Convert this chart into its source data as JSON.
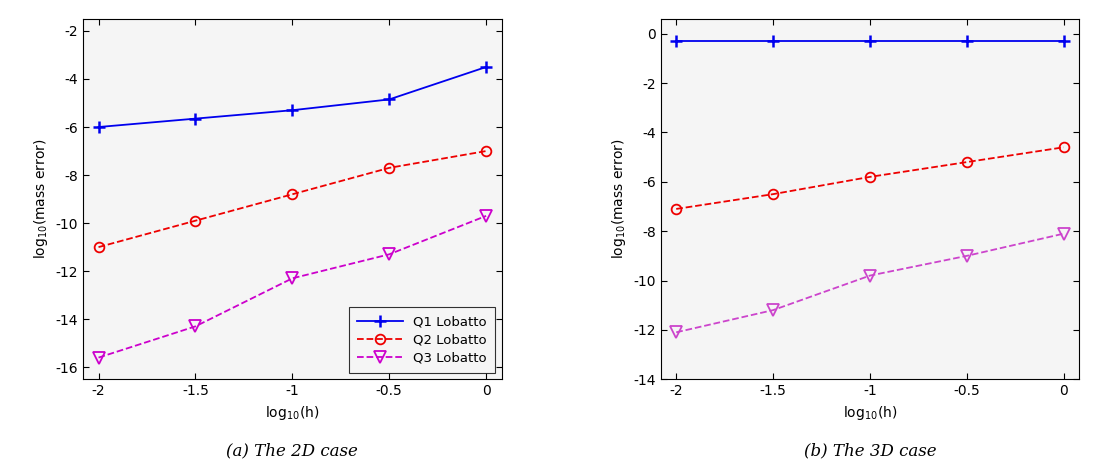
{
  "title_2d": "(a) The 2D case",
  "title_3d": "(b) The 3D case",
  "2d": {
    "Q1": {
      "x": [
        -2.0,
        -1.5,
        -1.0,
        -0.5,
        0.0
      ],
      "y": [
        -6.0,
        -5.65,
        -5.3,
        -4.85,
        -3.5
      ],
      "color": "#0000EE",
      "linestyle": "solid",
      "marker": "+"
    },
    "Q2": {
      "x": [
        -2.0,
        -1.5,
        -1.0,
        -0.5,
        0.0
      ],
      "y": [
        -11.0,
        -9.9,
        -8.8,
        -7.7,
        -7.0
      ],
      "color": "#EE0000",
      "linestyle": "dashed",
      "marker": "o"
    },
    "Q3": {
      "x": [
        -2.0,
        -1.5,
        -1.0,
        -0.5,
        0.0
      ],
      "y": [
        -15.6,
        -14.3,
        -12.3,
        -11.3,
        -9.7
      ],
      "color": "#CC00CC",
      "linestyle": "dashed",
      "marker": "v"
    }
  },
  "3d": {
    "Q1": {
      "x": [
        -2.0,
        -1.5,
        -1.0,
        -0.5,
        0.0
      ],
      "y": [
        -0.3,
        -0.3,
        -0.3,
        -0.3,
        -0.3
      ],
      "color": "#0000EE",
      "linestyle": "solid",
      "marker": "+"
    },
    "Q2": {
      "x": [
        -2.0,
        -1.5,
        -1.0,
        -0.5,
        0.0
      ],
      "y": [
        -7.1,
        -6.5,
        -5.8,
        -5.2,
        -4.6
      ],
      "color": "#EE0000",
      "linestyle": "dashed",
      "marker": "o"
    },
    "Q3": {
      "x": [
        -2.0,
        -1.5,
        -1.0,
        -0.5,
        0.0
      ],
      "y": [
        -12.1,
        -11.2,
        -9.8,
        -9.0,
        -8.1
      ],
      "color": "#CC44CC",
      "linestyle": "dashed",
      "marker": "v"
    }
  },
  "legend_labels": [
    "Q1 Lobatto",
    "Q2 Lobatto",
    "Q3 Lobatto"
  ],
  "xlim": [
    -2.08,
    0.08
  ],
  "2d_ylim": [
    -16.5,
    -1.5
  ],
  "3d_ylim": [
    -14.0,
    0.6
  ],
  "2d_yticks": [
    -16,
    -14,
    -12,
    -10,
    -8,
    -6,
    -4,
    -2
  ],
  "3d_yticks": [
    -14,
    -12,
    -10,
    -8,
    -6,
    -4,
    -2,
    0
  ],
  "xticks": [
    -2.0,
    -1.5,
    -1.0,
    -0.5,
    0.0
  ],
  "xtick_labels": [
    "-2",
    "-1.5",
    "-1",
    "-0.5",
    "0"
  ],
  "marker_size_plus": 9,
  "marker_size_circle": 7,
  "marker_size_tri": 8,
  "linewidth": 1.3,
  "font_size": 10,
  "caption_font_size": 12,
  "background_color": "#f5f5f5"
}
